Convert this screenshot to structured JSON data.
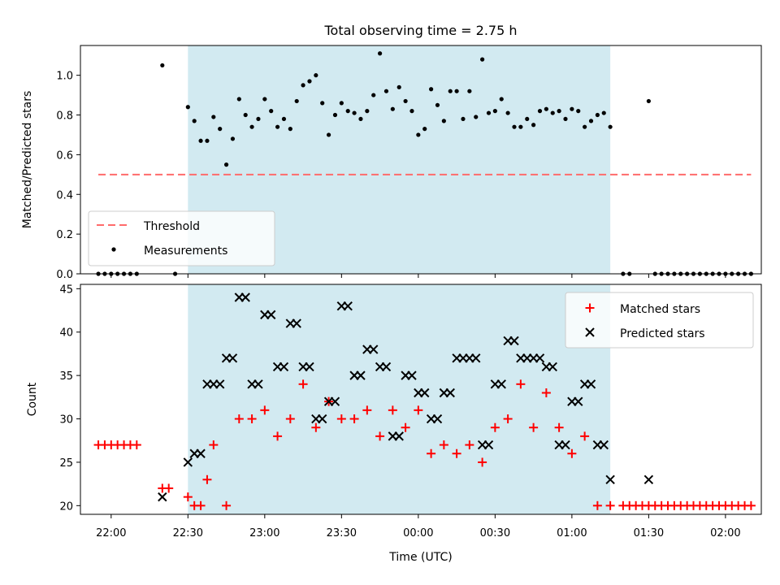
{
  "title": "Total observing time = 2.75 h",
  "xlabel": "Time (UTC)",
  "colors": {
    "span": "#add8e6",
    "threshold": "#ff6b6b",
    "matched": "#ff0000",
    "predicted": "#000000",
    "measurement": "#000000"
  },
  "x_ticks": [
    {
      "t": 0,
      "label": "22:00"
    },
    {
      "t": 30,
      "label": "22:30"
    },
    {
      "t": 60,
      "label": "23:00"
    },
    {
      "t": 90,
      "label": "23:30"
    },
    {
      "t": 120,
      "label": "00:00"
    },
    {
      "t": 150,
      "label": "00:30"
    },
    {
      "t": 180,
      "label": "01:00"
    },
    {
      "t": 210,
      "label": "01:30"
    },
    {
      "t": 240,
      "label": "02:00"
    }
  ],
  "chart_data": [
    {
      "type": "scatter",
      "panel": "top",
      "ylabel": "Matched/Predicted stars",
      "xlim": [
        "21:48",
        "02:14"
      ],
      "ylim": [
        0,
        1.15
      ],
      "yticks": [
        0.0,
        0.2,
        0.4,
        0.6,
        0.8,
        1.0
      ],
      "yticklabels": [
        "0.0",
        "0.2",
        "0.4",
        "0.6",
        "0.8",
        "1.0"
      ],
      "observing_window": [
        "22:30",
        "01:15"
      ],
      "legend": {
        "position": "lower-left",
        "entries": [
          "Threshold",
          "Measurements"
        ]
      },
      "threshold": {
        "name": "Threshold",
        "value": 0.5,
        "x": [
          "21:55",
          "02:10"
        ]
      },
      "series": [
        {
          "name": "Measurements",
          "x": [
            "21:55",
            "21:57.5",
            "22:00",
            "22:02.5",
            "22:05",
            "22:07.5",
            "22:10",
            "22:20",
            "22:25",
            "22:30",
            "22:32.5",
            "22:35",
            "22:37.5",
            "22:40",
            "22:42.5",
            "22:45",
            "22:47.5",
            "22:50",
            "22:52.5",
            "22:55",
            "22:57.5",
            "23:00",
            "23:02.5",
            "23:05",
            "23:07.5",
            "23:10",
            "23:12.5",
            "23:15",
            "23:17.5",
            "23:20",
            "23:22.5",
            "23:25",
            "23:27.5",
            "23:30",
            "23:32.5",
            "23:35",
            "23:37.5",
            "23:40",
            "23:42.5",
            "23:45",
            "23:47.5",
            "23:50",
            "23:52.5",
            "23:55",
            "23:57.5",
            "00:00",
            "00:02.5",
            "00:05",
            "00:07.5",
            "00:10",
            "00:12.5",
            "00:15",
            "00:17.5",
            "00:20",
            "00:22.5",
            "00:25",
            "00:27.5",
            "00:30",
            "00:32.5",
            "00:35",
            "00:37.5",
            "00:40",
            "00:42.5",
            "00:45",
            "00:47.5",
            "00:50",
            "00:52.5",
            "00:55",
            "00:57.5",
            "01:00",
            "01:02.5",
            "01:05",
            "01:07.5",
            "01:10",
            "01:12.5",
            "01:15",
            "01:20",
            "01:22.5",
            "01:30",
            "01:32.5",
            "01:35",
            "01:37.5",
            "01:40",
            "01:42.5",
            "01:45",
            "01:47.5",
            "01:50",
            "01:52.5",
            "01:55",
            "01:57.5",
            "02:00",
            "02:02.5",
            "02:05",
            "02:07.5",
            "02:10"
          ],
          "y": [
            0,
            0,
            0,
            0,
            0,
            0,
            0,
            1.05,
            0,
            0.84,
            0.77,
            0.67,
            0.67,
            0.79,
            0.73,
            0.55,
            0.68,
            0.88,
            0.8,
            0.74,
            0.78,
            0.88,
            0.82,
            0.74,
            0.78,
            0.73,
            0.87,
            0.95,
            0.97,
            1.0,
            0.86,
            0.7,
            0.8,
            0.86,
            0.82,
            0.81,
            0.78,
            0.82,
            0.9,
            1.11,
            0.92,
            0.83,
            0.94,
            0.87,
            0.82,
            0.7,
            0.73,
            0.93,
            0.85,
            0.77,
            0.92,
            0.92,
            0.78,
            0.92,
            0.79,
            1.08,
            0.81,
            0.82,
            0.88,
            0.81,
            0.74,
            0.74,
            0.78,
            0.75,
            0.82,
            0.83,
            0.81,
            0.82,
            0.78,
            0.83,
            0.82,
            0.74,
            0.77,
            0.8,
            0.81,
            0.74,
            0,
            0,
            0.87,
            0,
            0,
            0,
            0,
            0,
            0,
            0,
            0,
            0,
            0,
            0,
            0,
            0,
            0,
            0,
            0
          ]
        }
      ]
    },
    {
      "type": "scatter",
      "panel": "bottom",
      "ylabel": "Count",
      "xlabel": "Time (UTC)",
      "xlim": [
        "21:48",
        "02:14"
      ],
      "ylim": [
        19,
        45.5
      ],
      "yticks": [
        20,
        25,
        30,
        35,
        40,
        45
      ],
      "observing_window": [
        "22:30",
        "01:15"
      ],
      "legend": {
        "position": "upper-right",
        "entries": [
          "Matched stars",
          "Predicted stars"
        ]
      },
      "series": [
        {
          "name": "Matched stars",
          "x": [
            "21:55",
            "21:57.5",
            "22:00",
            "22:02.5",
            "22:05",
            "22:07.5",
            "22:10",
            "22:20",
            "22:22.5",
            "22:30",
            "22:32.5",
            "22:35",
            "22:37.5",
            "22:40",
            "22:45",
            "22:50",
            "22:55",
            "23:00",
            "23:05",
            "23:10",
            "23:15",
            "23:20",
            "23:25",
            "23:30",
            "23:35",
            "23:40",
            "23:45",
            "23:50",
            "23:55",
            "00:00",
            "00:05",
            "00:10",
            "00:15",
            "00:20",
            "00:25",
            "00:30",
            "00:35",
            "00:40",
            "00:45",
            "00:50",
            "00:55",
            "01:00",
            "01:05",
            "01:10",
            "01:15",
            "01:20",
            "01:22.5",
            "01:25",
            "01:27.5",
            "01:30",
            "01:32.5",
            "01:35",
            "01:37.5",
            "01:40",
            "01:42.5",
            "01:45",
            "01:47.5",
            "01:50",
            "01:52.5",
            "01:55",
            "01:57.5",
            "02:00",
            "02:02.5",
            "02:05",
            "02:07.5",
            "02:10"
          ],
          "y": [
            27,
            27,
            27,
            27,
            27,
            27,
            27,
            22,
            22,
            21,
            20,
            20,
            23,
            27,
            20,
            30,
            30,
            31,
            28,
            30,
            34,
            29,
            32,
            30,
            30,
            31,
            28,
            31,
            29,
            31,
            26,
            27,
            26,
            27,
            25,
            29,
            30,
            34,
            29,
            33,
            29,
            26,
            28,
            20,
            20,
            20,
            20,
            20,
            20,
            20,
            20,
            20,
            20,
            20,
            20,
            20,
            20,
            20,
            20,
            20,
            20,
            20,
            20,
            20,
            20,
            20
          ]
        },
        {
          "name": "Predicted stars",
          "x": [
            "22:20",
            "22:30",
            "22:32.5",
            "22:35",
            "22:37.5",
            "22:40",
            "22:42.5",
            "22:45",
            "22:47.5",
            "22:50",
            "22:52.5",
            "22:55",
            "22:57.5",
            "23:00",
            "23:02.5",
            "23:05",
            "23:07.5",
            "23:10",
            "23:12.5",
            "23:15",
            "23:17.5",
            "23:20",
            "23:22.5",
            "23:25",
            "23:27.5",
            "23:30",
            "23:32.5",
            "23:35",
            "23:37.5",
            "23:40",
            "23:42.5",
            "23:45",
            "23:47.5",
            "23:50",
            "23:52.5",
            "23:55",
            "23:57.5",
            "00:00",
            "00:02.5",
            "00:05",
            "00:07.5",
            "00:10",
            "00:12.5",
            "00:15",
            "00:17.5",
            "00:20",
            "00:22.5",
            "00:25",
            "00:27.5",
            "00:30",
            "00:32.5",
            "00:35",
            "00:37.5",
            "00:40",
            "00:42.5",
            "00:45",
            "00:47.5",
            "00:50",
            "00:52.5",
            "00:55",
            "00:57.5",
            "01:00",
            "01:02.5",
            "01:05",
            "01:07.5",
            "01:10",
            "01:12.5",
            "01:15",
            "01:30"
          ],
          "y": [
            21,
            25,
            26,
            26,
            34,
            34,
            34,
            37,
            37,
            44,
            44,
            34,
            34,
            42,
            42,
            36,
            36,
            41,
            41,
            36,
            36,
            30,
            30,
            32,
            32,
            43,
            43,
            35,
            35,
            38,
            38,
            36,
            36,
            28,
            28,
            35,
            35,
            33,
            33,
            30,
            30,
            33,
            33,
            37,
            37,
            37,
            37,
            27,
            27,
            34,
            34,
            39,
            39,
            37,
            37,
            37,
            37,
            36,
            36,
            27,
            27,
            32,
            32,
            34,
            34,
            27,
            27,
            23,
            23
          ]
        }
      ]
    }
  ]
}
